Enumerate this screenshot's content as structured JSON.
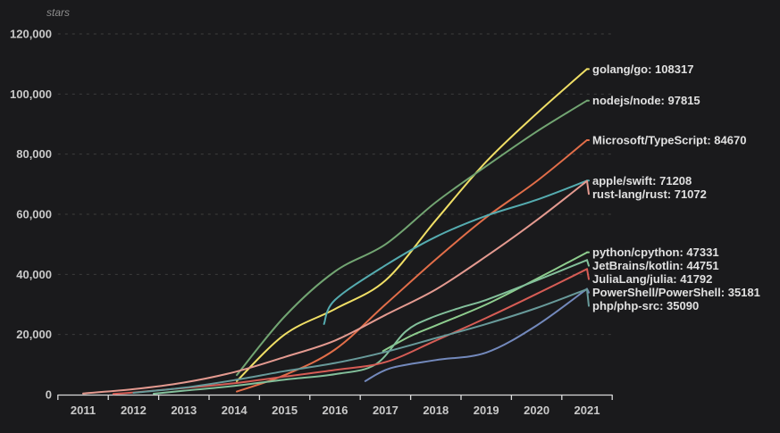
{
  "chart_data": {
    "type": "line",
    "title": "",
    "y_axis": {
      "title": "stars",
      "min": 0,
      "max": 120000,
      "tick_interval": 20000,
      "tick_labels": [
        "0",
        "20,000",
        "40,000",
        "60,000",
        "80,000",
        "100,000",
        "120,000"
      ],
      "gridlines": "dashed horizontal"
    },
    "x_axis": {
      "tick_labels": [
        "2011",
        "2012",
        "2013",
        "2014",
        "2015",
        "2016",
        "2017",
        "2018",
        "2019",
        "2020",
        "2021"
      ]
    },
    "legend_position": "end-of-line labels (right side)",
    "series": [
      {
        "name": "golang/go",
        "final_value": 108317,
        "label": "golang/go: 108317",
        "color": "#f0df66",
        "points": [
          [
            2014.05,
            4500
          ],
          [
            2015,
            20000
          ],
          [
            2016,
            28500
          ],
          [
            2017,
            38000
          ],
          [
            2018,
            58000
          ],
          [
            2019,
            77500
          ],
          [
            2020,
            93500
          ],
          [
            2021,
            108317
          ]
        ]
      },
      {
        "name": "nodejs/node",
        "final_value": 97815,
        "label": "nodejs/node: 97815",
        "color": "#72a572",
        "points": [
          [
            2014.05,
            6500
          ],
          [
            2015,
            26000
          ],
          [
            2016,
            41000
          ],
          [
            2017,
            50000
          ],
          [
            2018,
            64000
          ],
          [
            2019,
            76000
          ],
          [
            2020,
            87500
          ],
          [
            2021,
            97815
          ]
        ]
      },
      {
        "name": "Microsoft/TypeScript",
        "final_value": 84670,
        "label": "Microsoft/TypeScript: 84670",
        "color": "#e26e49",
        "points": [
          [
            2014.05,
            1000
          ],
          [
            2015,
            6500
          ],
          [
            2016,
            15000
          ],
          [
            2017,
            30000
          ],
          [
            2018,
            45000
          ],
          [
            2019,
            59000
          ],
          [
            2020,
            71000
          ],
          [
            2021,
            84670
          ]
        ]
      },
      {
        "name": "apple/swift",
        "final_value": 71208,
        "label": "apple/swift: 71208",
        "color": "#55acb0",
        "points": [
          [
            2015.78,
            23500
          ],
          [
            2016,
            31500
          ],
          [
            2017,
            43000
          ],
          [
            2018,
            52500
          ],
          [
            2019,
            59500
          ],
          [
            2020,
            64800
          ],
          [
            2021,
            71208
          ]
        ]
      },
      {
        "name": "rust-lang/rust",
        "final_value": 71072,
        "label": "rust-lang/rust: 71072",
        "color": "#e49a90",
        "points": [
          [
            2011,
            400
          ],
          [
            2012,
            1800
          ],
          [
            2013,
            4000
          ],
          [
            2014,
            7500
          ],
          [
            2015,
            12500
          ],
          [
            2016,
            18000
          ],
          [
            2017,
            26500
          ],
          [
            2018,
            35000
          ],
          [
            2019,
            46000
          ],
          [
            2020,
            58000
          ],
          [
            2021,
            71072
          ]
        ]
      },
      {
        "name": "python/cpython",
        "final_value": 47331,
        "label": "python/cpython: 47331",
        "color": "#8ecd8e",
        "points": [
          [
            2016.95,
            14500
          ],
          [
            2017.5,
            19500
          ],
          [
            2018,
            23000
          ],
          [
            2019,
            30000
          ],
          [
            2020,
            38500
          ],
          [
            2021,
            47331
          ]
        ]
      },
      {
        "name": "JetBrains/kotlin",
        "final_value": 44751,
        "label": "JetBrains/kotlin: 44751",
        "color": "#83c09b",
        "points": [
          [
            2012.4,
            300
          ],
          [
            2013,
            1300
          ],
          [
            2014,
            2900
          ],
          [
            2015,
            5000
          ],
          [
            2016,
            6800
          ],
          [
            2016.8,
            10000
          ],
          [
            2017.4,
            21000
          ],
          [
            2017.9,
            25500
          ],
          [
            2018.5,
            29000
          ],
          [
            2019,
            31500
          ],
          [
            2020,
            38000
          ],
          [
            2021,
            44751
          ]
        ]
      },
      {
        "name": "JuliaLang/julia",
        "final_value": 41792,
        "label": "JuliaLang/julia: 41792",
        "color": "#d65c55",
        "points": [
          [
            2011.6,
            200
          ],
          [
            2012,
            700
          ],
          [
            2013,
            2200
          ],
          [
            2014,
            3800
          ],
          [
            2015,
            6000
          ],
          [
            2016,
            8200
          ],
          [
            2017,
            10800
          ],
          [
            2018,
            18000
          ],
          [
            2019,
            25500
          ],
          [
            2020,
            33500
          ],
          [
            2021,
            41792
          ]
        ]
      },
      {
        "name": "PowerShell/PowerShell",
        "final_value": 35181,
        "label": "PowerShell/PowerShell: 35181",
        "color": "#7389bc",
        "points": [
          [
            2016.6,
            4500
          ],
          [
            2017.1,
            8800
          ],
          [
            2018,
            11500
          ],
          [
            2019,
            14000
          ],
          [
            2020,
            23000
          ],
          [
            2021,
            35181
          ]
        ]
      },
      {
        "name": "php/php-src",
        "final_value": 35090,
        "label": "php/php-src: 35090",
        "color": "#689a9a",
        "points": [
          [
            2012,
            600
          ],
          [
            2013,
            2300
          ],
          [
            2014,
            4800
          ],
          [
            2015,
            7800
          ],
          [
            2016,
            10500
          ],
          [
            2017,
            14200
          ],
          [
            2018,
            18800
          ],
          [
            2019,
            23500
          ],
          [
            2020,
            28800
          ],
          [
            2021,
            35090
          ]
        ]
      }
    ]
  },
  "colors": {
    "background": "#1a1a1c",
    "gridline": "#3d3d3d",
    "axis_line": "#d8d8d8",
    "tick_text": "#c9c9c9",
    "label_text": "#e0e0e0",
    "axis_title_text": "#8d8d8d"
  }
}
